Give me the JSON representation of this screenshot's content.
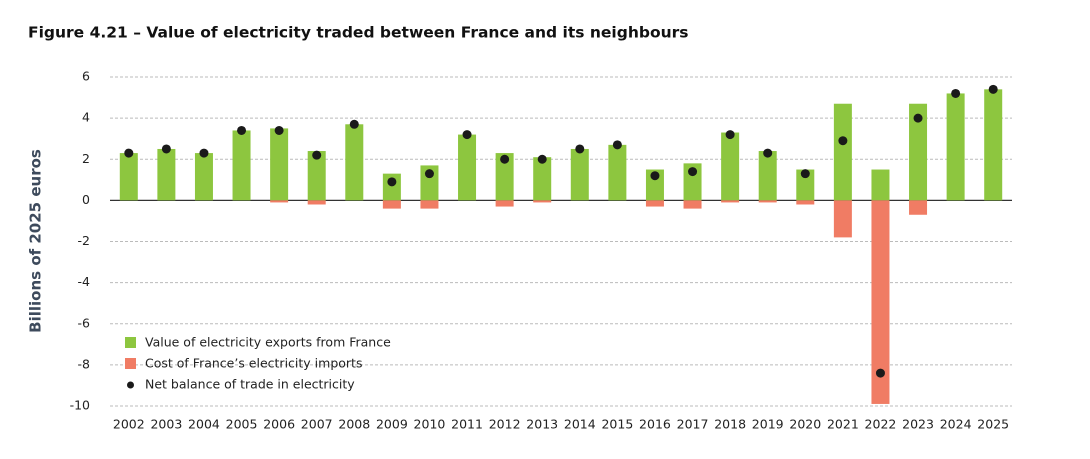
{
  "chart_data": {
    "type": "bar",
    "title": "Figure 4.21 – Value of electricity traded between France and its neighbours",
    "y_label": "Billions of 2025 euros",
    "categories": [
      "2002",
      "2003",
      "2004",
      "2005",
      "2006",
      "2007",
      "2008",
      "2009",
      "2010",
      "2011",
      "2012",
      "2013",
      "2014",
      "2015",
      "2016",
      "2017",
      "2018",
      "2019",
      "2020",
      "2021",
      "2022",
      "2023",
      "2024",
      "2025"
    ],
    "series": [
      {
        "name": "Value of electricity exports from France",
        "type": "bar",
        "color": "#8dc63f",
        "values": [
          2.3,
          2.5,
          2.3,
          3.4,
          3.5,
          2.4,
          3.7,
          1.3,
          1.7,
          3.2,
          2.3,
          2.1,
          2.5,
          2.7,
          1.5,
          1.8,
          3.3,
          2.4,
          1.5,
          4.7,
          1.5,
          4.7,
          5.2,
          5.4
        ]
      },
      {
        "name": "Cost of France’s electricity imports",
        "type": "bar",
        "color": "#f07c64",
        "values": [
          0,
          0,
          0,
          0,
          -0.1,
          -0.2,
          0,
          -0.4,
          -0.4,
          0,
          -0.3,
          -0.1,
          0,
          0,
          -0.3,
          -0.4,
          -0.1,
          -0.1,
          -0.2,
          -1.8,
          -9.9,
          -0.7,
          0,
          0
        ]
      },
      {
        "name": "Net balance of trade in electricity",
        "type": "scatter",
        "color": "#1a1a1a",
        "values": [
          2.3,
          2.5,
          2.3,
          3.4,
          3.4,
          2.2,
          3.7,
          0.9,
          1.3,
          3.2,
          2.0,
          2.0,
          2.5,
          2.7,
          1.2,
          1.4,
          3.2,
          2.3,
          1.3,
          2.9,
          -8.4,
          4.0,
          5.2,
          5.4
        ]
      }
    ],
    "ylim": [
      -10,
      6
    ],
    "yticks": [
      -10,
      -8,
      -6,
      -4,
      -2,
      0,
      2,
      4,
      6
    ],
    "grid": true,
    "legend": "lower left"
  }
}
